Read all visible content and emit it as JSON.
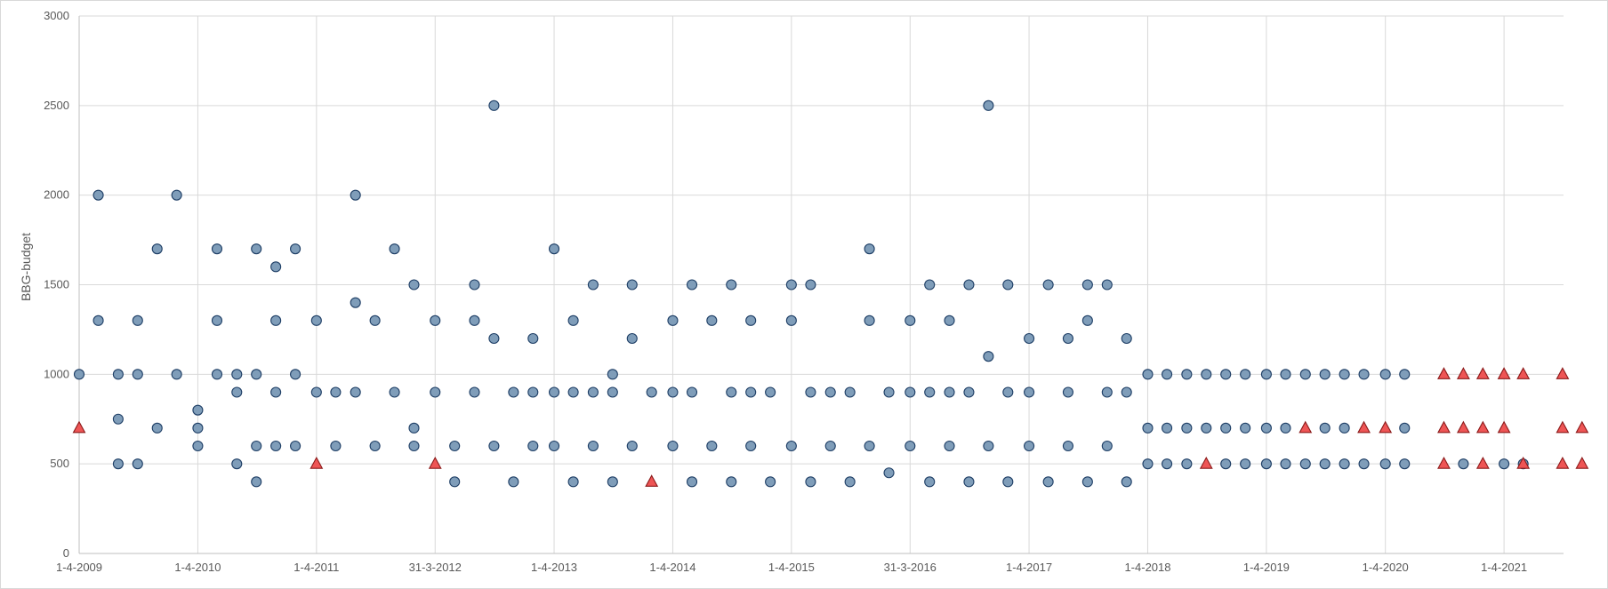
{
  "chart_data": {
    "type": "scatter",
    "title": "",
    "ylabel": "BBG-budget",
    "xlabel": "",
    "ylim": [
      0,
      3000
    ],
    "yticks": [
      0,
      500,
      1000,
      1500,
      2000,
      2500,
      3000
    ],
    "xlim": [
      "2009-04-01",
      "2021-10-01"
    ],
    "xticks": [
      {
        "date": "2009-04-01",
        "label": "1-4-2009"
      },
      {
        "date": "2010-04-01",
        "label": "1-4-2010"
      },
      {
        "date": "2011-04-01",
        "label": "1-4-2011"
      },
      {
        "date": "2012-03-31",
        "label": "31-3-2012"
      },
      {
        "date": "2013-04-01",
        "label": "1-4-2013"
      },
      {
        "date": "2014-04-01",
        "label": "1-4-2014"
      },
      {
        "date": "2015-04-01",
        "label": "1-4-2015"
      },
      {
        "date": "2016-03-31",
        "label": "31-3-2016"
      },
      {
        "date": "2017-04-01",
        "label": "1-4-2017"
      },
      {
        "date": "2018-04-01",
        "label": "1-4-2018"
      },
      {
        "date": "2019-04-01",
        "label": "1-4-2019"
      },
      {
        "date": "2020-04-01",
        "label": "1-4-2020"
      },
      {
        "date": "2021-04-01",
        "label": "1-4-2021"
      }
    ],
    "grid": true,
    "colors": {
      "series_a": "#7f9db9",
      "series_b": "#ee5555"
    },
    "series": [
      {
        "marker": "circle",
        "points": [
          [
            "2009-04-01",
            1000
          ],
          [
            "2009-05-30",
            2000
          ],
          [
            "2009-05-30",
            1300
          ],
          [
            "2009-07-30",
            1000
          ],
          [
            "2009-07-30",
            750
          ],
          [
            "2009-07-30",
            500
          ],
          [
            "2009-09-28",
            1300
          ],
          [
            "2009-09-28",
            1000
          ],
          [
            "2009-09-28",
            500
          ],
          [
            "2009-11-27",
            1700
          ],
          [
            "2009-11-27",
            700
          ],
          [
            "2010-01-26",
            2000
          ],
          [
            "2010-01-26",
            1000
          ],
          [
            "2010-04-01",
            800
          ],
          [
            "2010-04-01",
            700
          ],
          [
            "2010-04-01",
            600
          ],
          [
            "2010-05-30",
            1700
          ],
          [
            "2010-05-30",
            1300
          ],
          [
            "2010-05-30",
            1000
          ],
          [
            "2010-07-30",
            1000
          ],
          [
            "2010-07-30",
            900
          ],
          [
            "2010-07-30",
            500
          ],
          [
            "2010-09-28",
            1700
          ],
          [
            "2010-09-28",
            1000
          ],
          [
            "2010-09-28",
            600
          ],
          [
            "2010-09-28",
            400
          ],
          [
            "2010-11-27",
            1600
          ],
          [
            "2010-11-27",
            1300
          ],
          [
            "2010-11-27",
            900
          ],
          [
            "2010-11-27",
            600
          ],
          [
            "2011-01-26",
            1700
          ],
          [
            "2011-01-26",
            1000
          ],
          [
            "2011-01-26",
            600
          ],
          [
            "2011-04-01",
            1300
          ],
          [
            "2011-04-01",
            900
          ],
          [
            "2011-05-30",
            900
          ],
          [
            "2011-05-30",
            600
          ],
          [
            "2011-07-30",
            2000
          ],
          [
            "2011-07-30",
            1400
          ],
          [
            "2011-07-30",
            900
          ],
          [
            "2011-09-28",
            1300
          ],
          [
            "2011-09-28",
            600
          ],
          [
            "2011-11-27",
            1700
          ],
          [
            "2011-11-27",
            900
          ],
          [
            "2012-01-26",
            1500
          ],
          [
            "2012-01-26",
            700
          ],
          [
            "2012-01-26",
            600
          ],
          [
            "2012-03-31",
            1300
          ],
          [
            "2012-03-31",
            900
          ],
          [
            "2012-05-30",
            600
          ],
          [
            "2012-05-30",
            400
          ],
          [
            "2012-07-30",
            1500
          ],
          [
            "2012-07-30",
            1300
          ],
          [
            "2012-07-30",
            900
          ],
          [
            "2012-09-28",
            2500
          ],
          [
            "2012-09-28",
            1200
          ],
          [
            "2012-09-28",
            600
          ],
          [
            "2012-11-27",
            900
          ],
          [
            "2012-11-27",
            400
          ],
          [
            "2013-01-26",
            1200
          ],
          [
            "2013-01-26",
            900
          ],
          [
            "2013-01-26",
            600
          ],
          [
            "2013-04-01",
            1700
          ],
          [
            "2013-04-01",
            900
          ],
          [
            "2013-04-01",
            600
          ],
          [
            "2013-05-30",
            1300
          ],
          [
            "2013-05-30",
            900
          ],
          [
            "2013-05-30",
            400
          ],
          [
            "2013-07-30",
            1500
          ],
          [
            "2013-07-30",
            900
          ],
          [
            "2013-07-30",
            600
          ],
          [
            "2013-09-28",
            1000
          ],
          [
            "2013-09-28",
            900
          ],
          [
            "2013-09-28",
            400
          ],
          [
            "2013-11-27",
            1500
          ],
          [
            "2013-11-27",
            1200
          ],
          [
            "2013-11-27",
            600
          ],
          [
            "2014-01-26",
            900
          ],
          [
            "2014-04-01",
            1300
          ],
          [
            "2014-04-01",
            900
          ],
          [
            "2014-04-01",
            600
          ],
          [
            "2014-05-30",
            1500
          ],
          [
            "2014-05-30",
            900
          ],
          [
            "2014-05-30",
            400
          ],
          [
            "2014-07-30",
            1300
          ],
          [
            "2014-07-30",
            600
          ],
          [
            "2014-09-28",
            1500
          ],
          [
            "2014-09-28",
            900
          ],
          [
            "2014-09-28",
            400
          ],
          [
            "2014-11-27",
            1300
          ],
          [
            "2014-11-27",
            900
          ],
          [
            "2014-11-27",
            600
          ],
          [
            "2015-01-26",
            900
          ],
          [
            "2015-01-26",
            400
          ],
          [
            "2015-04-01",
            1500
          ],
          [
            "2015-04-01",
            1300
          ],
          [
            "2015-04-01",
            600
          ],
          [
            "2015-05-30",
            1500
          ],
          [
            "2015-05-30",
            900
          ],
          [
            "2015-05-30",
            400
          ],
          [
            "2015-07-30",
            900
          ],
          [
            "2015-07-30",
            600
          ],
          [
            "2015-09-28",
            900
          ],
          [
            "2015-09-28",
            400
          ],
          [
            "2015-11-27",
            1700
          ],
          [
            "2015-11-27",
            1300
          ],
          [
            "2015-11-27",
            600
          ],
          [
            "2016-01-26",
            900
          ],
          [
            "2016-01-26",
            450
          ],
          [
            "2016-03-31",
            1300
          ],
          [
            "2016-03-31",
            900
          ],
          [
            "2016-03-31",
            600
          ],
          [
            "2016-05-30",
            1500
          ],
          [
            "2016-05-30",
            900
          ],
          [
            "2016-05-30",
            400
          ],
          [
            "2016-07-30",
            1300
          ],
          [
            "2016-07-30",
            900
          ],
          [
            "2016-07-30",
            600
          ],
          [
            "2016-09-28",
            1500
          ],
          [
            "2016-09-28",
            900
          ],
          [
            "2016-09-28",
            400
          ],
          [
            "2016-11-27",
            2500
          ],
          [
            "2016-11-27",
            1100
          ],
          [
            "2016-11-27",
            600
          ],
          [
            "2017-01-26",
            1500
          ],
          [
            "2017-01-26",
            900
          ],
          [
            "2017-01-26",
            400
          ],
          [
            "2017-04-01",
            1200
          ],
          [
            "2017-04-01",
            900
          ],
          [
            "2017-04-01",
            600
          ],
          [
            "2017-05-30",
            1500
          ],
          [
            "2017-05-30",
            400
          ],
          [
            "2017-07-30",
            1200
          ],
          [
            "2017-07-30",
            900
          ],
          [
            "2017-07-30",
            600
          ],
          [
            "2017-09-28",
            1500
          ],
          [
            "2017-09-28",
            1300
          ],
          [
            "2017-09-28",
            400
          ],
          [
            "2017-11-27",
            1500
          ],
          [
            "2017-11-27",
            900
          ],
          [
            "2017-11-27",
            600
          ],
          [
            "2018-01-26",
            1200
          ],
          [
            "2018-01-26",
            900
          ],
          [
            "2018-01-26",
            400
          ],
          [
            "2018-04-01",
            1000
          ],
          [
            "2018-04-01",
            700
          ],
          [
            "2018-04-01",
            500
          ],
          [
            "2018-05-30",
            1000
          ],
          [
            "2018-05-30",
            700
          ],
          [
            "2018-05-30",
            500
          ],
          [
            "2018-07-30",
            1000
          ],
          [
            "2018-07-30",
            700
          ],
          [
            "2018-07-30",
            500
          ],
          [
            "2018-09-28",
            1000
          ],
          [
            "2018-09-28",
            700
          ],
          [
            "2018-11-27",
            1000
          ],
          [
            "2018-11-27",
            700
          ],
          [
            "2018-11-27",
            500
          ],
          [
            "2019-01-26",
            1000
          ],
          [
            "2019-01-26",
            700
          ],
          [
            "2019-01-26",
            500
          ],
          [
            "2019-04-01",
            1000
          ],
          [
            "2019-04-01",
            700
          ],
          [
            "2019-04-01",
            500
          ],
          [
            "2019-05-30",
            1000
          ],
          [
            "2019-05-30",
            700
          ],
          [
            "2019-05-30",
            500
          ],
          [
            "2019-07-30",
            1000
          ],
          [
            "2019-07-30",
            500
          ],
          [
            "2019-09-28",
            1000
          ],
          [
            "2019-09-28",
            700
          ],
          [
            "2019-09-28",
            500
          ],
          [
            "2019-11-27",
            1000
          ],
          [
            "2019-11-27",
            700
          ],
          [
            "2019-11-27",
            500
          ],
          [
            "2020-01-26",
            1000
          ],
          [
            "2020-01-26",
            500
          ],
          [
            "2020-04-01",
            1000
          ],
          [
            "2020-04-01",
            500
          ],
          [
            "2020-05-30",
            1000
          ],
          [
            "2020-05-30",
            700
          ],
          [
            "2020-05-30",
            500
          ],
          [
            "2020-11-27",
            500
          ],
          [
            "2021-04-01",
            500
          ],
          [
            "2021-05-30",
            500
          ]
        ]
      },
      {
        "marker": "triangle",
        "points": [
          [
            "2009-04-01",
            700
          ],
          [
            "2011-04-01",
            500
          ],
          [
            "2012-03-31",
            500
          ],
          [
            "2014-01-26",
            400
          ],
          [
            "2018-09-28",
            500
          ],
          [
            "2019-07-30",
            700
          ],
          [
            "2020-01-26",
            700
          ],
          [
            "2020-04-01",
            700
          ],
          [
            "2020-09-28",
            1000
          ],
          [
            "2020-09-28",
            700
          ],
          [
            "2020-09-28",
            500
          ],
          [
            "2020-11-27",
            1000
          ],
          [
            "2020-11-27",
            700
          ],
          [
            "2021-01-26",
            1000
          ],
          [
            "2021-01-26",
            700
          ],
          [
            "2021-01-26",
            500
          ],
          [
            "2021-04-01",
            1000
          ],
          [
            "2021-04-01",
            700
          ],
          [
            "2021-05-30",
            1000
          ],
          [
            "2021-05-30",
            500
          ],
          [
            "2021-09-28",
            1000
          ],
          [
            "2021-09-28",
            700
          ],
          [
            "2021-09-28",
            500
          ],
          [
            "2021-11-27",
            700
          ],
          [
            "2021-11-27",
            500
          ]
        ]
      }
    ]
  }
}
